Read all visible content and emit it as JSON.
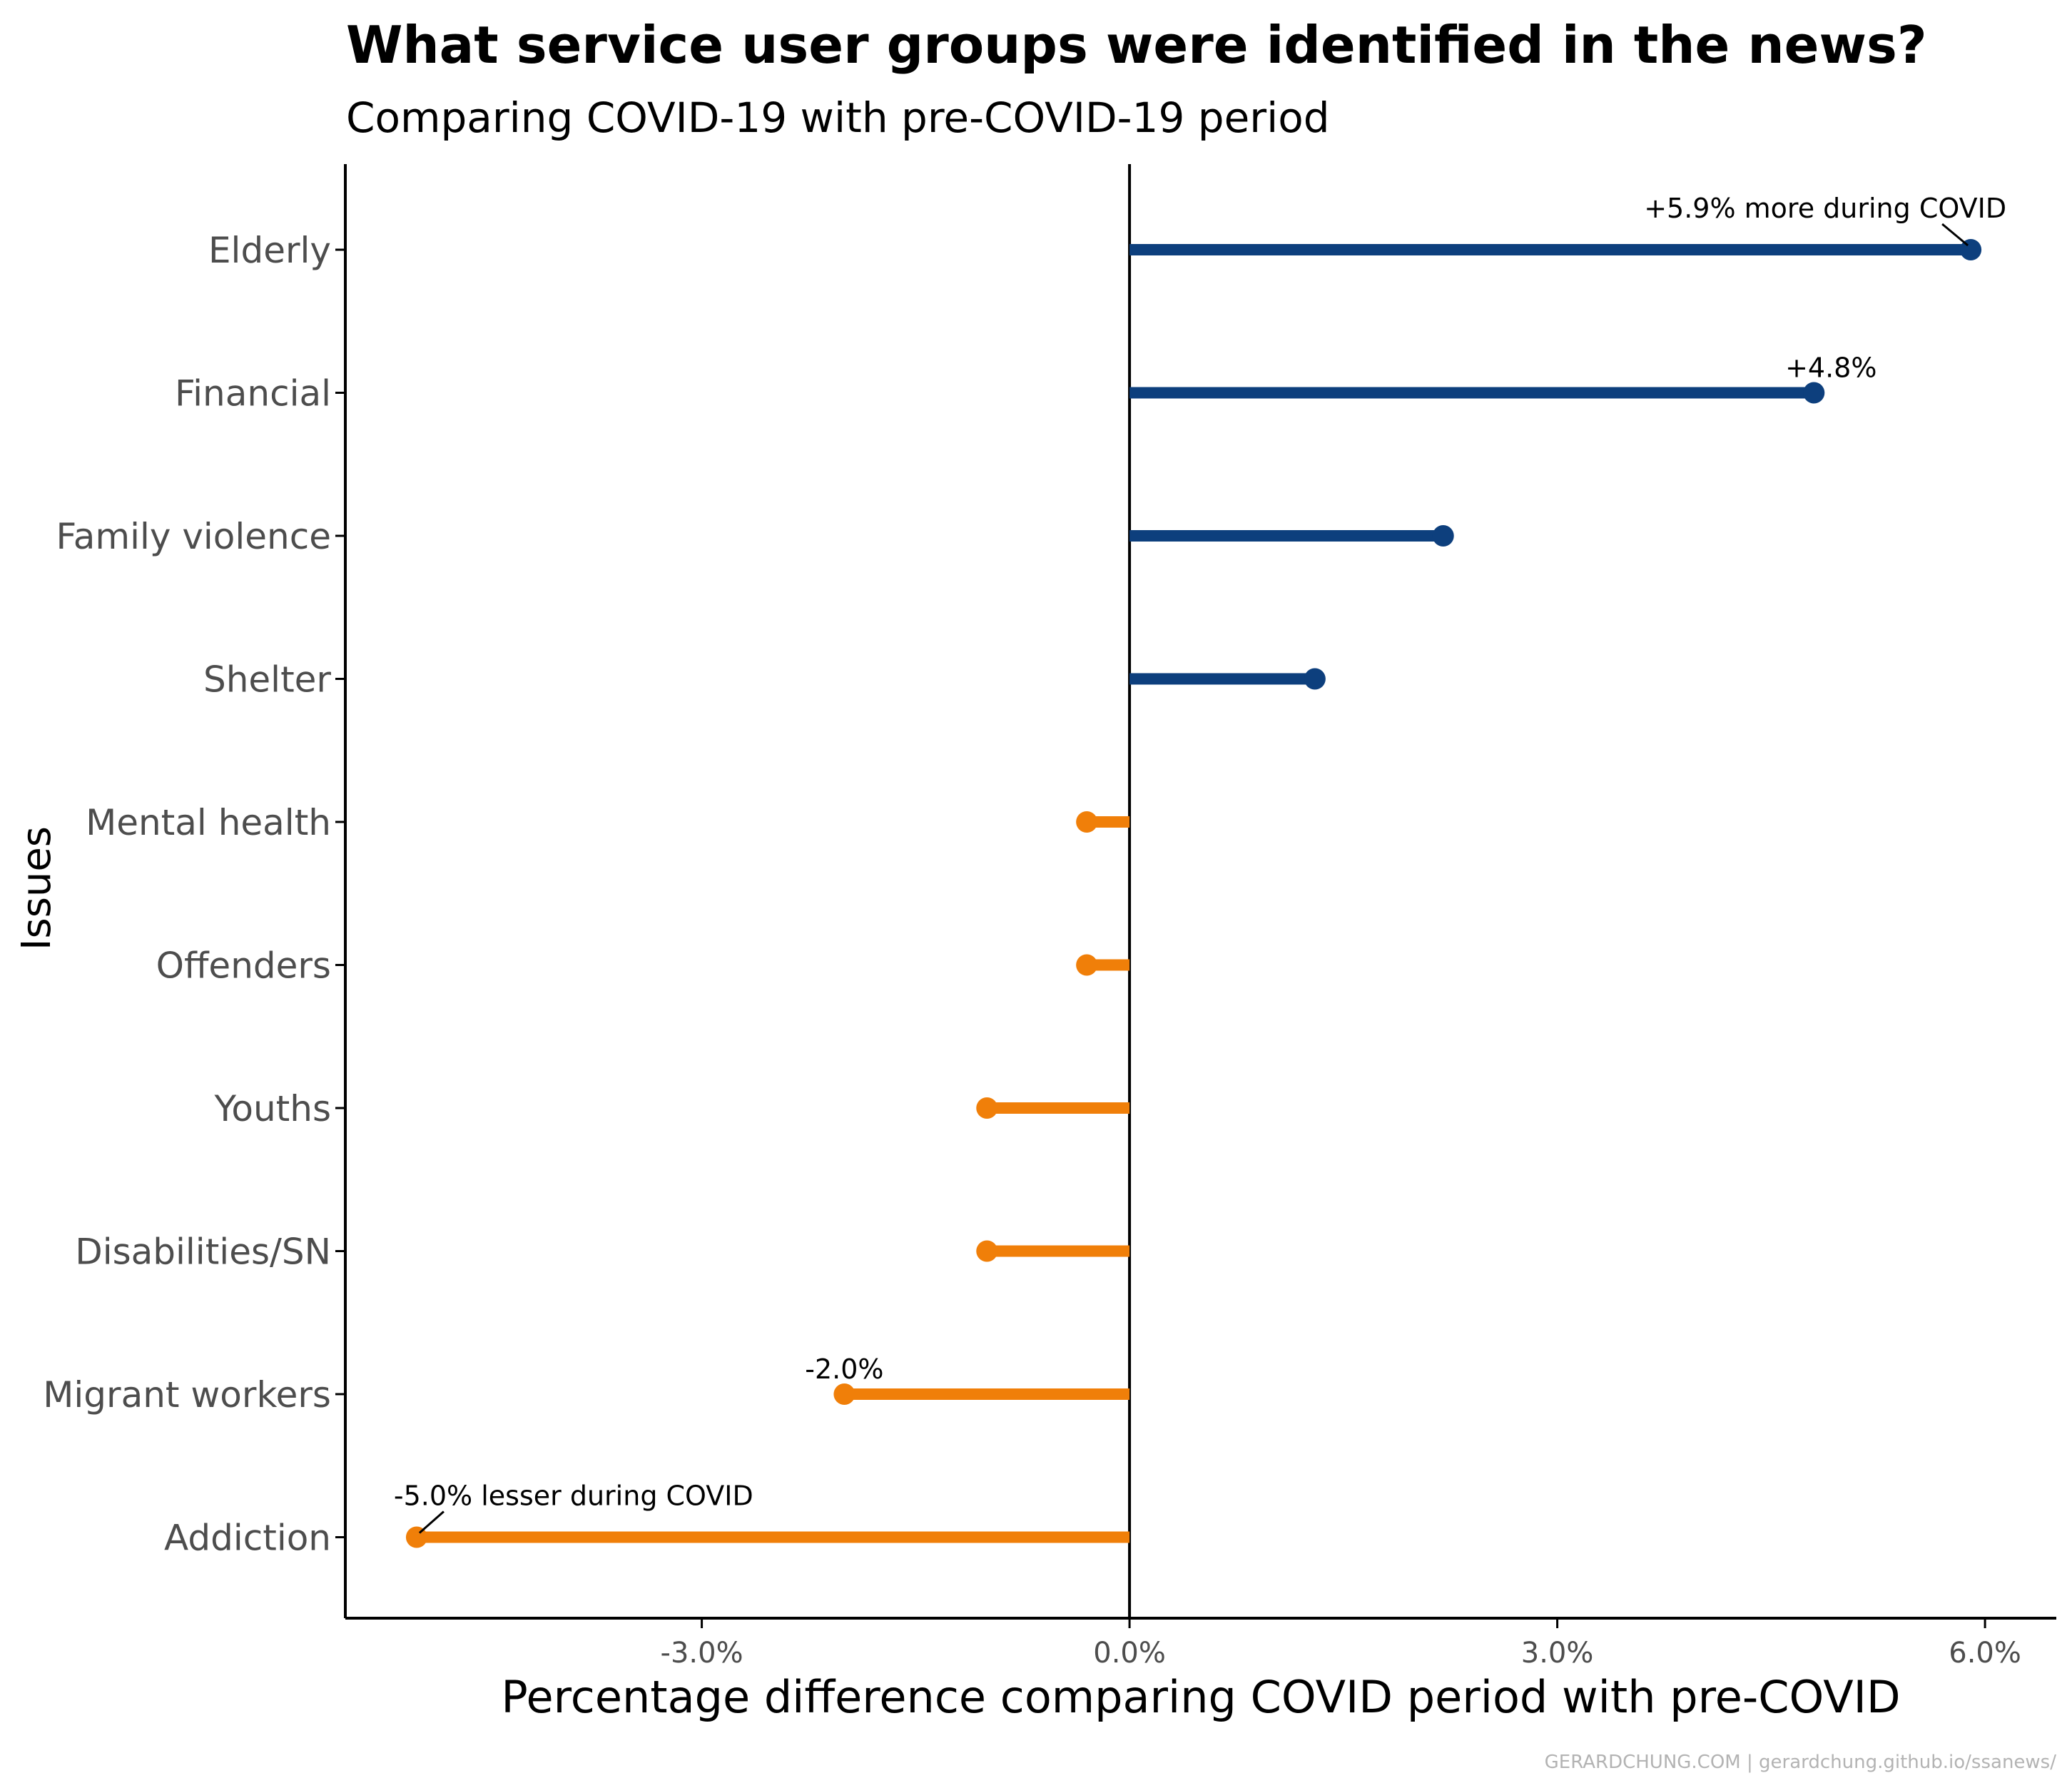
{
  "chart_data": {
    "type": "lollipop",
    "title": "What service user groups were identified in the news?",
    "subtitle": "Comparing COVID-19 with pre-COVID-19 period",
    "xlabel": "Percentage difference comparing COVID period with pre-COVID",
    "ylabel": "Issues",
    "xlim": [
      -5.5,
      6.5
    ],
    "x_ticks": [
      -3,
      0,
      3,
      6
    ],
    "x_tick_labels": [
      "-3.0%",
      "0.0%",
      "3.0%",
      "6.0%"
    ],
    "categories": [
      "Elderly",
      "Financial",
      "Family violence",
      "Shelter",
      "Mental health",
      "Offenders",
      "Youths",
      "Disabilities/SN",
      "Migrant workers",
      "Addiction"
    ],
    "values": [
      5.9,
      4.8,
      2.2,
      1.3,
      -0.3,
      -0.3,
      -1.0,
      -1.0,
      -2.0,
      -5.0
    ],
    "colors": {
      "positive": "#0d3f7d",
      "negative": "#f07f09"
    },
    "grid": false,
    "annotations": [
      {
        "category": "Elderly",
        "text": "+5.9% more during COVID",
        "leader": true
      },
      {
        "category": "Financial",
        "text": "+4.8%",
        "leader": false
      },
      {
        "category": "Migrant workers",
        "text": "-2.0%",
        "leader": false
      },
      {
        "category": "Addiction",
        "text": "-5.0% lesser during COVID",
        "leader": true
      }
    ],
    "caption": "GERARDCHUNG.COM  |  gerardchung.github.io/ssanews/"
  }
}
